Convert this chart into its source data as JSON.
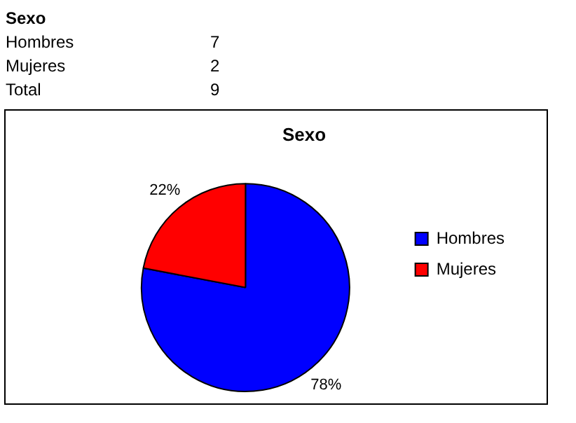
{
  "chart_data": {
    "type": "pie",
    "title": "Sexo",
    "categories": [
      "Hombres",
      "Mujeres"
    ],
    "values": [
      78,
      22
    ],
    "value_labels": [
      "78%",
      "22%"
    ],
    "colors": [
      "#0000ff",
      "#ff0000"
    ],
    "legend": "right",
    "annotations": [
      "Sexo",
      "Hombres 7",
      "Mujeres 2",
      "Total 9"
    ]
  }
}
